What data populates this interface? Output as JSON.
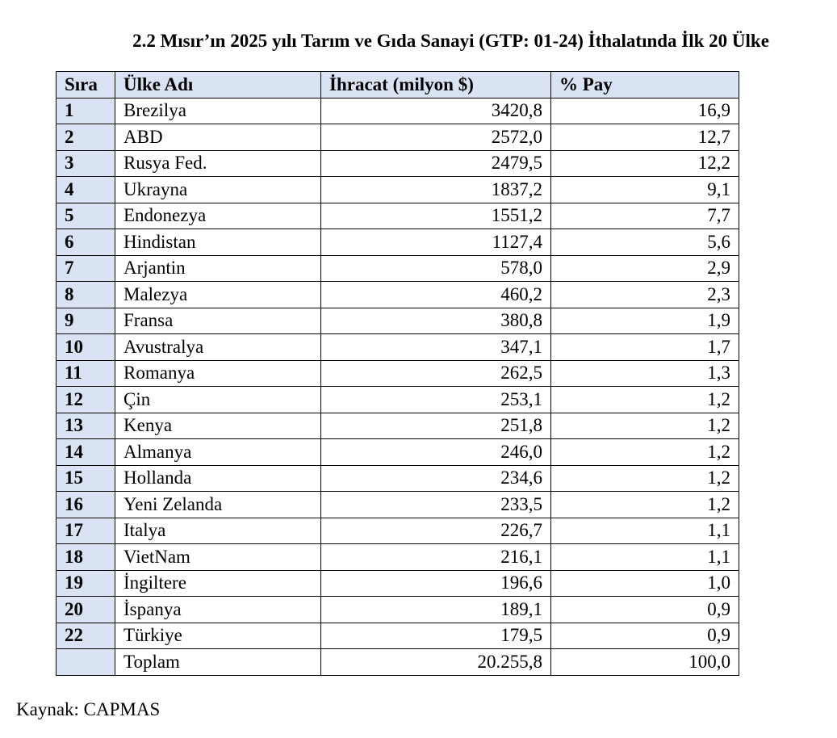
{
  "title": "2.2 Mısır’ın 2025 yılı Tarım ve Gıda Sanayi (GTP: 01-24) İthalatında İlk 20 Ülke",
  "table": {
    "headers": [
      "Sıra",
      "Ülke Adı",
      "İhracat (milyon $)",
      "% Pay"
    ],
    "rows": [
      [
        "1",
        "Brezilya",
        "3420,8",
        "16,9"
      ],
      [
        "2",
        "ABD",
        "2572,0",
        "12,7"
      ],
      [
        "3",
        "Rusya Fed.",
        "2479,5",
        "12,2"
      ],
      [
        "4",
        "Ukrayna",
        "1837,2",
        "9,1"
      ],
      [
        "5",
        "Endonezya",
        "1551,2",
        "7,7"
      ],
      [
        "6",
        "Hindistan",
        "1127,4",
        "5,6"
      ],
      [
        "7",
        "Arjantin",
        "578,0",
        "2,9"
      ],
      [
        "8",
        "Malezya",
        "460,2",
        "2,3"
      ],
      [
        "9",
        "Fransa",
        "380,8",
        "1,9"
      ],
      [
        "10",
        "Avustralya",
        "347,1",
        "1,7"
      ],
      [
        "11",
        "Romanya",
        "262,5",
        "1,3"
      ],
      [
        "12",
        "Çin",
        "253,1",
        "1,2"
      ],
      [
        "13",
        "Kenya",
        "251,8",
        "1,2"
      ],
      [
        "14",
        "Almanya",
        "246,0",
        "1,2"
      ],
      [
        "15",
        "Hollanda",
        "234,6",
        "1,2"
      ],
      [
        "16",
        "Yeni Zelanda",
        "233,5",
        "1,2"
      ],
      [
        "17",
        "Italya",
        "226,7",
        "1,1"
      ],
      [
        "18",
        "VietNam",
        "216,1",
        "1,1"
      ],
      [
        "19",
        "İngiltere",
        "196,6",
        "1,0"
      ],
      [
        "20",
        "İspanya",
        "189,1",
        "0,9"
      ],
      [
        "22",
        "Türkiye",
        "179,5",
        "0,9"
      ]
    ],
    "total": [
      "",
      "Toplam",
      "20.255,8",
      "100,0"
    ]
  },
  "source": "Kaynak: CAPMAS",
  "colors": {
    "header_fill": "#dae3f3",
    "border": "#000000"
  }
}
